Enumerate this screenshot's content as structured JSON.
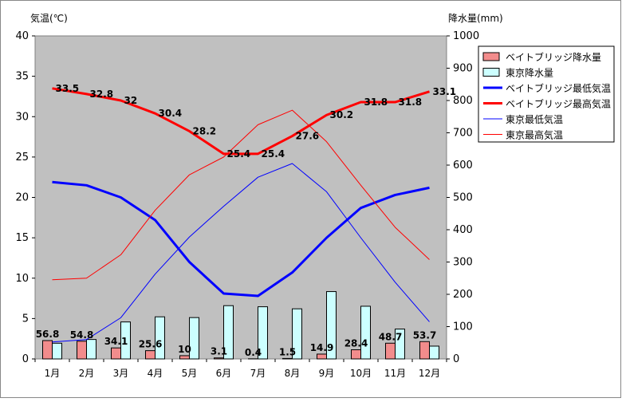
{
  "chart_data": {
    "type": "bar+line",
    "categories": [
      "1月",
      "2月",
      "3月",
      "4月",
      "5月",
      "6月",
      "7月",
      "8月",
      "9月",
      "10月",
      "11月",
      "12月"
    ],
    "y_left": {
      "label": "気温(℃)",
      "lim": [
        0,
        40
      ],
      "ticks": [
        "0",
        "5",
        "10",
        "15",
        "20",
        "25",
        "30",
        "35",
        "40"
      ]
    },
    "y_right": {
      "label": "降水量(mm)",
      "lim": [
        0,
        1000
      ],
      "ticks": [
        "0",
        "100",
        "200",
        "300",
        "400",
        "500",
        "600",
        "700",
        "800",
        "900",
        "1000"
      ]
    },
    "grid": false,
    "legend_position": "top-right",
    "series": [
      {
        "name": "ベイトブリッジ降水量",
        "type": "bar",
        "axis": "right",
        "color": "#f28c8c",
        "values": [
          56.8,
          54.8,
          34.1,
          25.6,
          10,
          3.1,
          0.4,
          1.5,
          14.9,
          28.4,
          48.7,
          53.7
        ],
        "labels": [
          "56.8",
          "54.8",
          "34.1",
          "25.6",
          "10",
          "3.1",
          "0.4",
          "1.5",
          "14.9",
          "28.4",
          "48.7",
          "53.7"
        ]
      },
      {
        "name": "東京降水量",
        "type": "bar",
        "axis": "right",
        "color": "#ccffff",
        "values": [
          48.6,
          60.2,
          114.5,
          130.3,
          128.0,
          164.9,
          161.5,
          155.1,
          208.5,
          163.1,
          92.5,
          39.6
        ]
      },
      {
        "name": "ベイトブリッジ最低気温",
        "type": "line",
        "axis": "left",
        "color": "#0000ff",
        "width": 3,
        "values": [
          21.9,
          21.5,
          20.0,
          17.2,
          12.0,
          8.1,
          7.8,
          10.7,
          15.0,
          18.7,
          20.3,
          21.2
        ]
      },
      {
        "name": "ベイトブリッジ最高気温",
        "type": "line",
        "axis": "left",
        "color": "#ff0000",
        "width": 3,
        "values": [
          33.5,
          32.8,
          32.0,
          30.4,
          28.2,
          25.4,
          25.4,
          27.6,
          30.2,
          31.8,
          31.8,
          33.1
        ],
        "labels": [
          "33.5",
          "32.8",
          "32",
          "30.4",
          "28.2",
          "25.4",
          "25.4",
          "27.6",
          "30.2",
          "31.8",
          "31.8",
          "33.1"
        ]
      },
      {
        "name": "東京最低気温",
        "type": "line",
        "axis": "left",
        "color": "#0000ff",
        "width": 1,
        "values": [
          2.1,
          2.4,
          5.1,
          10.5,
          15.1,
          18.9,
          22.5,
          24.2,
          20.7,
          15.0,
          9.5,
          4.6
        ]
      },
      {
        "name": "東京最高気温",
        "type": "line",
        "axis": "left",
        "color": "#ff0000",
        "width": 1,
        "values": [
          9.8,
          10.0,
          12.9,
          18.4,
          22.8,
          25.0,
          29.0,
          30.8,
          26.9,
          21.5,
          16.3,
          12.3
        ]
      }
    ]
  }
}
